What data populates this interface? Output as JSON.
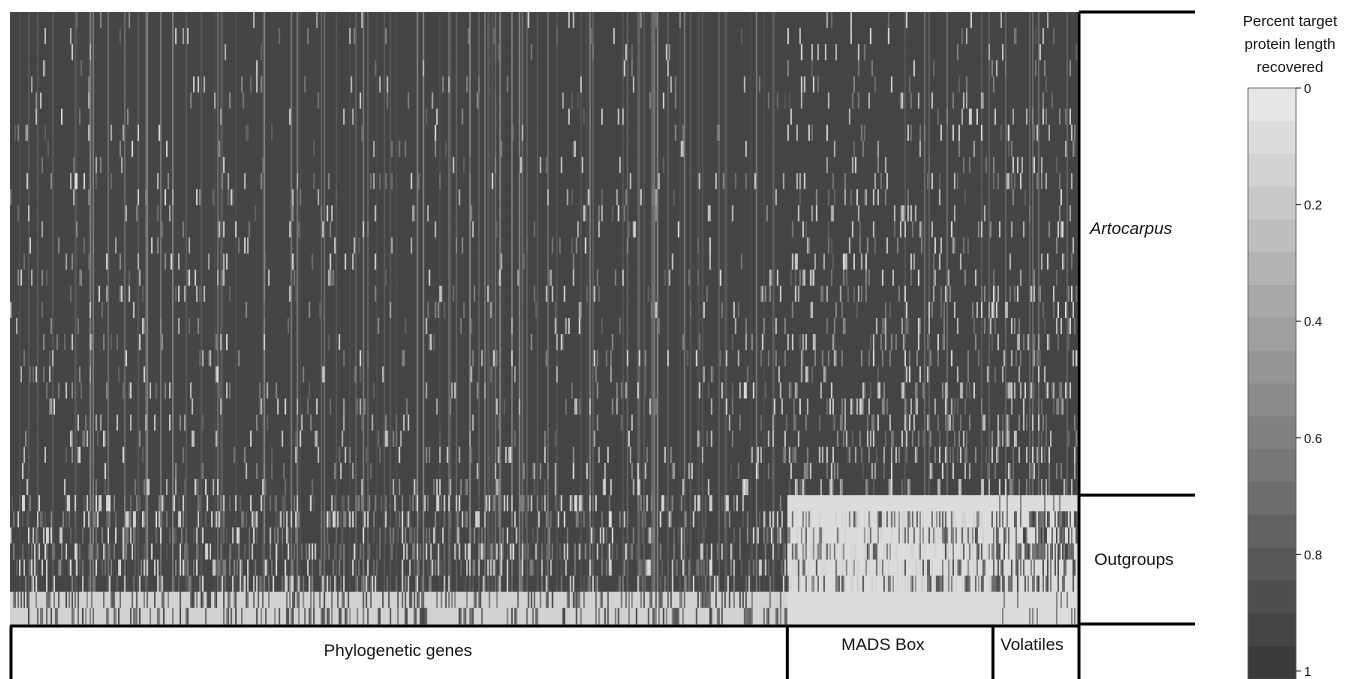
{
  "chart_data": {
    "type": "heatmap",
    "colorbar": {
      "title_lines": [
        "Percent target",
        "protein length",
        "recovered"
      ],
      "ticks": [
        0,
        0.2,
        0.4,
        0.6,
        0.8,
        1
      ],
      "tick_labels": [
        "0",
        "0.2",
        "0.4",
        "0.6",
        "0.8",
        "1"
      ],
      "range": [
        0,
        1
      ],
      "steps": 18,
      "color_low": "#e6e6e6",
      "color_high": "#3a3a3a"
    },
    "row_groups": [
      {
        "label": "Artocarpus",
        "italic": true,
        "rows": 30
      },
      {
        "label": "Outgroups",
        "italic": false,
        "rows": 8
      }
    ],
    "column_groups": [
      {
        "label": "Phylogenetic genes",
        "columns": 518
      },
      {
        "label": "MADS Box",
        "columns": 137
      },
      {
        "label": "Volatiles",
        "columns": 56
      }
    ],
    "matrix_summary": {
      "ingroup_typical_recovery": 0.93,
      "outgroup_mads_recovery": 0.05,
      "outgroup_last_rows_recovery": 0.1
    }
  },
  "colors": {
    "background": "#ffffff",
    "frame": "#000000"
  }
}
